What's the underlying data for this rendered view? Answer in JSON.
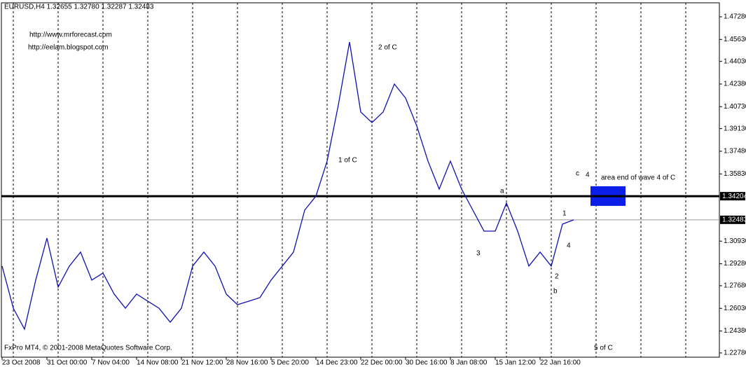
{
  "chart_data": {
    "type": "line",
    "title": "EURUSD,H4  1.32655 1.32780 1.32287 1.32483",
    "categories": [
      "23 Oct 2008",
      null,
      null,
      null,
      "31 Oct 00:00",
      null,
      null,
      null,
      "7 Nov 04:00",
      null,
      null,
      null,
      "14 Nov 08:00",
      null,
      null,
      null,
      "21 Nov 12:00",
      null,
      null,
      null,
      "28 Nov 16:00",
      null,
      null,
      null,
      "5 Dec 20:00",
      null,
      null,
      null,
      "14 Dec 23:00",
      null,
      null,
      null,
      "22 Dec 00:00",
      null,
      null,
      null,
      "30 Dec 16:00",
      null,
      null,
      null,
      "8 Jan 08:00",
      null,
      null,
      null,
      "15 Jan 12:00",
      null,
      null,
      null,
      "22 Jan 16:00",
      null,
      null,
      null,
      null,
      null,
      null,
      null,
      null,
      null,
      null,
      null,
      null,
      null,
      null,
      null
    ],
    "series": [
      {
        "name": "EURUSD",
        "color": "#1010b0",
        "values": [
          1.2911,
          1.2604,
          1.2451,
          1.2809,
          1.3115,
          1.2758,
          1.2911,
          1.3013,
          1.2809,
          1.286,
          1.2707,
          1.2604,
          1.2707,
          1.2655,
          1.2604,
          1.2502,
          1.2604,
          1.2911,
          1.3013,
          1.2911,
          1.2707,
          1.263,
          1.2655,
          1.2681,
          1.2809,
          1.2911,
          1.3013,
          1.3319,
          1.3421,
          1.3676,
          1.4085,
          1.4544,
          1.4034,
          1.3957,
          1.4034,
          1.4238,
          1.4136,
          1.3932,
          1.3676,
          1.3472,
          1.3676,
          1.3472,
          1.3319,
          1.3166,
          1.3166,
          1.337,
          1.3166,
          1.2911,
          1.3013,
          1.2911,
          1.3217,
          1.3248,
          null,
          null,
          null,
          null,
          null,
          null,
          null,
          null,
          null,
          null,
          null,
          null
        ]
      }
    ],
    "ylim": [
      1.2247,
      1.483
    ],
    "yticks": [
      {
        "value": 1.2278,
        "label": "1.22780"
      },
      {
        "value": 1.2438,
        "label": "1.24380"
      },
      {
        "value": 1.2603,
        "label": "1.26030"
      },
      {
        "value": 1.2768,
        "label": "1.27680"
      },
      {
        "value": 1.2928,
        "label": "1.29280"
      },
      {
        "value": 1.3093,
        "label": "1.30930"
      },
      {
        "value": 1.3583,
        "label": "1.35830"
      },
      {
        "value": 1.3748,
        "label": "1.37480"
      },
      {
        "value": 1.3913,
        "label": "1.39130"
      },
      {
        "value": 1.4073,
        "label": "1.40730"
      },
      {
        "value": 1.4238,
        "label": "1.42380"
      },
      {
        "value": 1.4403,
        "label": "1.44030"
      },
      {
        "value": 1.4563,
        "label": "1.45630"
      },
      {
        "value": 1.4728,
        "label": "1.47280"
      }
    ],
    "hlines": [
      {
        "value": 1.34204,
        "label": "1.34204",
        "color": "#000000",
        "width": 3,
        "label_fill": "#000000",
        "label_color": "#ffffff"
      },
      {
        "value": 1.32483,
        "label": "1.32483",
        "color": "#999999",
        "width": 1,
        "label_fill": "#000000",
        "label_color": "#ffffff"
      }
    ],
    "zone": {
      "from": 1.335,
      "to": 1.3493,
      "color": "#0a1ee8"
    },
    "grid": true,
    "annotations": [
      "http://www.mrforecast.com",
      "http://eelam.blogspot.com",
      "2 of C",
      "1 of C",
      "c",
      "4",
      "area end of wave 4 of C",
      "a",
      "3",
      "1",
      "2",
      "b",
      "4",
      "5 of C",
      "FxPro MT4, © 2001-2008 MetaQuotes Software Corp."
    ]
  }
}
